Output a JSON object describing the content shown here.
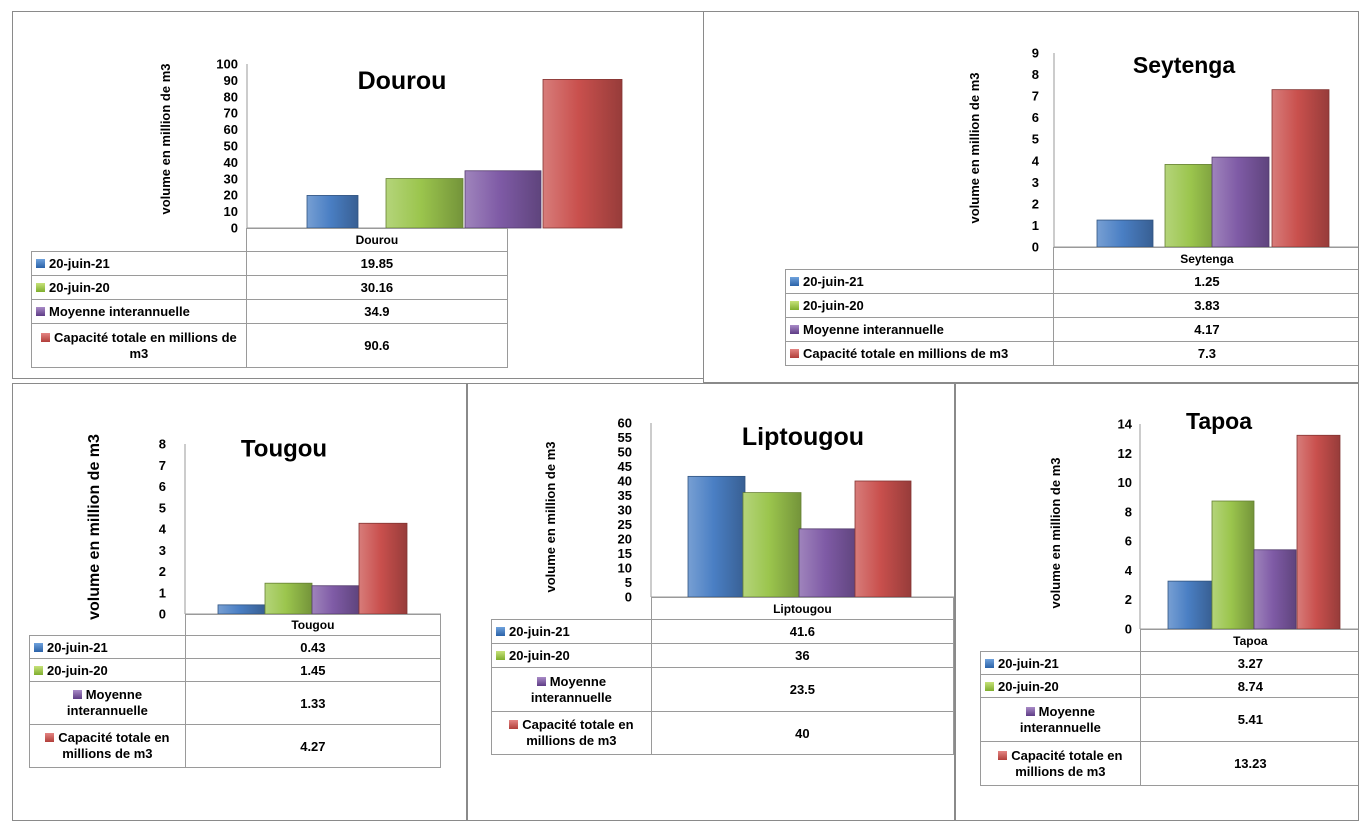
{
  "colors": {
    "blue": "#4a7fc4",
    "green": "#9bc54d",
    "purple": "#7f5ba6",
    "red": "#c9504d"
  },
  "series_keys": [
    "blue",
    "green",
    "purple",
    "red"
  ],
  "chart_data": [
    {
      "type": "bar",
      "title": "Dourou",
      "ylabel": "volume en million de m3",
      "ylim": [
        0,
        100
      ],
      "ytick_labels": [
        "0",
        "10",
        "20",
        "30",
        "40",
        "50",
        "60",
        "70",
        "80",
        "90",
        "100"
      ],
      "categories": [
        "Dourou"
      ],
      "series": [
        {
          "name": "20-juin-21",
          "values": [
            19.85
          ],
          "label": "19.85"
        },
        {
          "name": "20-juin-20",
          "values": [
            30.16
          ],
          "label": "30.16"
        },
        {
          "name": "Moyenne interannuelle",
          "values": [
            34.9
          ],
          "label": "34.9"
        },
        {
          "name": "Capacité totale en millions de m3",
          "values": [
            90.6
          ],
          "label": "90.6"
        }
      ],
      "legend": "data table below"
    },
    {
      "type": "bar",
      "title": "Seytenga",
      "ylabel": "volume en million de m3",
      "ylim": [
        0,
        9
      ],
      "ytick_labels": [
        "0",
        "1",
        "2",
        "3",
        "4",
        "5",
        "6",
        "7",
        "8",
        "9"
      ],
      "categories": [
        "Seytenga"
      ],
      "series": [
        {
          "name": "20-juin-21",
          "values": [
            1.25
          ],
          "label": "1.25"
        },
        {
          "name": "20-juin-20",
          "values": [
            3.83
          ],
          "label": "3.83"
        },
        {
          "name": "Moyenne interannuelle",
          "values": [
            4.17
          ],
          "label": "4.17"
        },
        {
          "name": "Capacité totale en millions de m3",
          "values": [
            7.3
          ],
          "label": "7.3"
        }
      ],
      "legend": "data table below"
    },
    {
      "type": "bar",
      "title": "Tougou",
      "ylabel": "volume en million de m3",
      "ylim": [
        0,
        8
      ],
      "ytick_labels": [
        "0",
        "1",
        "2",
        "3",
        "4",
        "5",
        "6",
        "7",
        "8"
      ],
      "categories": [
        "Tougou"
      ],
      "series": [
        {
          "name": "20-juin-21",
          "values": [
            0.43
          ],
          "label": "0.43"
        },
        {
          "name": "20-juin-20",
          "values": [
            1.45
          ],
          "label": "1.45"
        },
        {
          "name": "Moyenne interannuelle",
          "values": [
            1.33
          ],
          "label": "1.33"
        },
        {
          "name": "Capacité totale en millions de m3",
          "values": [
            4.27
          ],
          "label": "4.27"
        }
      ],
      "legend": "data table below"
    },
    {
      "type": "bar",
      "title": "Liptougou",
      "ylabel": "volume en million de m3",
      "ylim": [
        0,
        60
      ],
      "ytick_labels": [
        "0",
        "5",
        "10",
        "15",
        "20",
        "25",
        "30",
        "35",
        "40",
        "45",
        "50",
        "55",
        "60"
      ],
      "categories": [
        "Liptougou"
      ],
      "series": [
        {
          "name": "20-juin-21",
          "values": [
            41.6
          ],
          "label": "41.6"
        },
        {
          "name": "20-juin-20",
          "values": [
            36
          ],
          "label": "36"
        },
        {
          "name": "Moyenne interannuelle",
          "values": [
            23.5
          ],
          "label": "23.5"
        },
        {
          "name": "Capacité totale en millions de m3",
          "values": [
            40
          ],
          "label": "40"
        }
      ],
      "legend": "data table below"
    },
    {
      "type": "bar",
      "title": "Tapoa",
      "ylabel": "volume en million de m3",
      "ylim": [
        0,
        14
      ],
      "ytick_labels": [
        "0",
        "2",
        "4",
        "6",
        "8",
        "10",
        "12",
        "14"
      ],
      "categories": [
        "Tapoa"
      ],
      "series": [
        {
          "name": "20-juin-21",
          "values": [
            3.27
          ],
          "label": "3.27"
        },
        {
          "name": "20-juin-20",
          "values": [
            8.74
          ],
          "label": "8.74"
        },
        {
          "name": "Moyenne interannuelle",
          "values": [
            5.41
          ],
          "label": "5.41"
        },
        {
          "name": "Capacité totale en millions de m3",
          "values": [
            13.23
          ],
          "label": "13.23"
        }
      ],
      "legend": "data table below"
    }
  ]
}
